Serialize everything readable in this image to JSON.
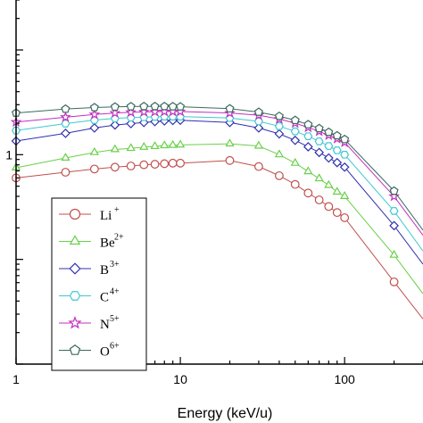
{
  "chart_data": {
    "type": "line",
    "xlabel": "Energy (keV/u)",
    "ylabel": "",
    "x_scale": "log",
    "y_scale": "log",
    "xlim": [
      1,
      300
    ],
    "ylim": [
      0.01,
      30
    ],
    "x_ticks": [
      {
        "value": 1,
        "label": "1"
      },
      {
        "value": 10,
        "label": "10"
      },
      {
        "value": 100,
        "label": "100"
      }
    ],
    "y_tick_labels": [
      {
        "value": 1,
        "label": "1"
      }
    ],
    "grid": false,
    "legend_position": "bottom-left",
    "series": [
      {
        "name": "Li",
        "sup": "+",
        "marker": "circle",
        "color": "#c0504d",
        "x": [
          1,
          2,
          3,
          4,
          5,
          6,
          7,
          8,
          9,
          10,
          20,
          30,
          40,
          50,
          60,
          70,
          80,
          90,
          100,
          200,
          300
        ],
        "y": [
          0.6,
          0.68,
          0.73,
          0.76,
          0.78,
          0.8,
          0.81,
          0.82,
          0.83,
          0.83,
          0.88,
          0.77,
          0.63,
          0.52,
          0.43,
          0.37,
          0.32,
          0.28,
          0.25,
          0.061,
          0.027
        ]
      },
      {
        "name": "Be",
        "sup": "2+",
        "marker": "triangle",
        "color": "#6ad04a",
        "x": [
          1,
          2,
          3,
          4,
          5,
          6,
          7,
          8,
          9,
          10,
          20,
          30,
          40,
          50,
          60,
          70,
          80,
          90,
          100,
          200,
          300
        ],
        "y": [
          0.75,
          0.93,
          1.05,
          1.12,
          1.15,
          1.18,
          1.2,
          1.22,
          1.23,
          1.24,
          1.27,
          1.21,
          1.0,
          0.83,
          0.69,
          0.59,
          0.51,
          0.44,
          0.4,
          0.11,
          0.047
        ]
      },
      {
        "name": "B",
        "sup": "3+",
        "marker": "diamond",
        "color": "#3030b0",
        "x": [
          1,
          2,
          3,
          4,
          5,
          6,
          7,
          8,
          9,
          10,
          20,
          30,
          40,
          50,
          60,
          70,
          80,
          90,
          100,
          200,
          300
        ],
        "y": [
          1.35,
          1.6,
          1.8,
          1.92,
          1.98,
          2.03,
          2.07,
          2.1,
          2.12,
          2.13,
          2.03,
          1.8,
          1.58,
          1.37,
          1.19,
          1.05,
          0.93,
          0.84,
          0.76,
          0.21,
          0.09
        ]
      },
      {
        "name": "C",
        "sup": "4+",
        "marker": "hexagon",
        "color": "#40c8d0",
        "x": [
          1,
          2,
          3,
          4,
          5,
          6,
          7,
          8,
          9,
          10,
          20,
          30,
          40,
          50,
          60,
          70,
          80,
          90,
          100,
          200,
          300
        ],
        "y": [
          1.7,
          1.98,
          2.14,
          2.22,
          2.26,
          2.28,
          2.3,
          2.31,
          2.31,
          2.31,
          2.24,
          2.08,
          1.87,
          1.67,
          1.5,
          1.34,
          1.21,
          1.1,
          1.0,
          0.29,
          0.12
        ]
      },
      {
        "name": "N",
        "sup": "5+",
        "marker": "star",
        "color": "#c030c0",
        "x": [
          1,
          2,
          3,
          4,
          5,
          6,
          7,
          8,
          9,
          10,
          20,
          30,
          40,
          50,
          60,
          70,
          80,
          90,
          100,
          200,
          300
        ],
        "y": [
          2.05,
          2.28,
          2.42,
          2.5,
          2.54,
          2.56,
          2.57,
          2.58,
          2.58,
          2.58,
          2.5,
          2.38,
          2.19,
          2.0,
          1.82,
          1.67,
          1.53,
          1.42,
          1.31,
          0.4,
          0.17
        ]
      },
      {
        "name": "O",
        "sup": "6+",
        "marker": "pentagon",
        "color": "#3a6b5c",
        "x": [
          1,
          2,
          3,
          4,
          5,
          6,
          7,
          8,
          9,
          10,
          20,
          30,
          40,
          50,
          60,
          70,
          80,
          90,
          100,
          200,
          300
        ],
        "y": [
          2.5,
          2.73,
          2.82,
          2.86,
          2.88,
          2.89,
          2.89,
          2.89,
          2.88,
          2.87,
          2.75,
          2.55,
          2.33,
          2.13,
          1.94,
          1.78,
          1.64,
          1.52,
          1.4,
          0.45,
          0.19
        ]
      }
    ]
  }
}
